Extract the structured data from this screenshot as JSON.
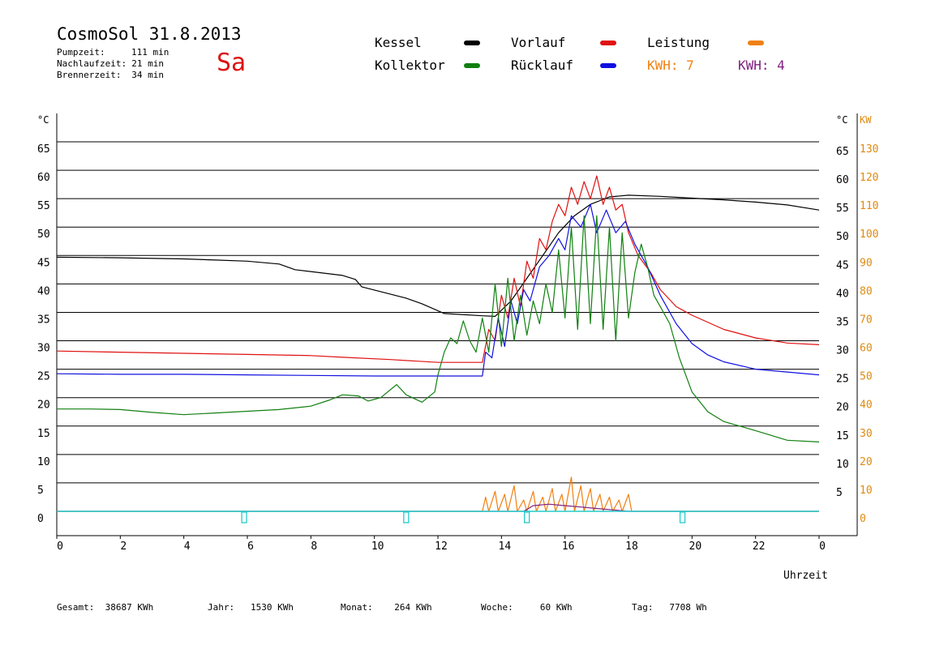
{
  "header": {
    "title": "CosmoSol 31.8.2013",
    "day": "Sa",
    "stats": [
      {
        "label": "Pumpzeit:",
        "value": "111 min"
      },
      {
        "label": "Nachlaufzeit:",
        "value": "21 min"
      },
      {
        "label": "Brennerzeit:",
        "value": "34 min"
      }
    ]
  },
  "legend": {
    "kessel": {
      "label": "Kessel",
      "color": "#000000"
    },
    "vorlauf": {
      "label": "Vorlauf",
      "color": "#e01010"
    },
    "leistung": {
      "label": "Leistung",
      "color": "#f08010"
    },
    "kollektor": {
      "label": "Kollektor",
      "color": "#108010"
    },
    "ruecklauf": {
      "label": "Rücklauf",
      "color": "#1010e0"
    },
    "kwh_orange": "KWH: 7",
    "kwh_purple": "KWH: 4"
  },
  "footer": [
    {
      "label": "Gesamt:",
      "value": "38687 KWh"
    },
    {
      "label": "Jahr:",
      "value": "1530 KWh"
    },
    {
      "label": "Monat:",
      "value": "264 KWh"
    },
    {
      "label": "Woche:",
      "value": "60 KWh"
    },
    {
      "label": "Tag:",
      "value": "7708 Wh"
    }
  ],
  "chart_data": {
    "type": "line",
    "xlabel": "Uhrzeit",
    "ylabel_left": "°C",
    "ylabel_right_temp": "°C",
    "ylabel_right_power": "KW",
    "xlim": [
      0,
      24
    ],
    "ylim": [
      0,
      65
    ],
    "x_ticks": [
      "0",
      "2",
      "4",
      "6",
      "8",
      "10",
      "12",
      "14",
      "16",
      "18",
      "20",
      "22",
      "0"
    ],
    "y_ticks_left": [
      "65",
      "60",
      "55",
      "50",
      "45",
      "40",
      "35",
      "30",
      "25",
      "20",
      "15",
      "10",
      "5",
      "0"
    ],
    "y_ticks_right_temp": [
      "65",
      "60",
      "55",
      "50",
      "45",
      "40",
      "35",
      "30",
      "25",
      "20",
      "15",
      "10",
      "5"
    ],
    "y_ticks_right_power": [
      "130",
      "120",
      "110",
      "100",
      "90",
      "80",
      "70",
      "60",
      "50",
      "40",
      "30",
      "20",
      "10",
      "0"
    ],
    "grid": "horizontal",
    "series": [
      {
        "name": "Kessel",
        "color": "#000000",
        "points": [
          [
            0,
            44.7
          ],
          [
            2,
            44.6
          ],
          [
            4,
            44.4
          ],
          [
            5,
            44.2
          ],
          [
            6,
            44.0
          ],
          [
            7,
            43.5
          ],
          [
            7.5,
            42.5
          ],
          [
            9,
            41.5
          ],
          [
            9.4,
            40.8
          ],
          [
            9.6,
            39.5
          ],
          [
            11,
            37.5
          ],
          [
            11.5,
            36.5
          ],
          [
            12.2,
            34.8
          ],
          [
            13.4,
            34.4
          ],
          [
            13.8,
            34.3
          ],
          [
            14.3,
            37
          ],
          [
            14.8,
            41
          ],
          [
            15.3,
            45
          ],
          [
            15.8,
            49
          ],
          [
            16.3,
            52
          ],
          [
            16.8,
            54
          ],
          [
            17.4,
            55.3
          ],
          [
            18,
            55.6
          ],
          [
            19,
            55.4
          ],
          [
            20,
            55.1
          ],
          [
            21,
            54.8
          ],
          [
            22,
            54.4
          ],
          [
            23,
            53.9
          ],
          [
            24,
            53.0
          ]
        ]
      },
      {
        "name": "Vorlauf",
        "color": "#e01010",
        "points": [
          [
            0,
            28.2
          ],
          [
            2,
            28.0
          ],
          [
            4,
            27.8
          ],
          [
            6,
            27.6
          ],
          [
            8,
            27.4
          ],
          [
            9,
            27.1
          ],
          [
            10.5,
            26.7
          ],
          [
            12,
            26.2
          ],
          [
            13.4,
            26.2
          ],
          [
            13.6,
            32
          ],
          [
            13.8,
            30
          ],
          [
            14.0,
            38
          ],
          [
            14.2,
            34
          ],
          [
            14.4,
            41
          ],
          [
            14.6,
            36
          ],
          [
            14.8,
            44
          ],
          [
            15.0,
            41
          ],
          [
            15.2,
            48
          ],
          [
            15.4,
            46
          ],
          [
            15.6,
            51
          ],
          [
            15.8,
            54
          ],
          [
            16.0,
            52
          ],
          [
            16.2,
            57
          ],
          [
            16.4,
            54
          ],
          [
            16.6,
            58
          ],
          [
            16.8,
            55
          ],
          [
            17.0,
            59
          ],
          [
            17.2,
            54
          ],
          [
            17.4,
            57
          ],
          [
            17.6,
            53
          ],
          [
            17.8,
            54
          ],
          [
            18.0,
            49
          ],
          [
            18.3,
            45
          ],
          [
            18.7,
            42
          ],
          [
            19.0,
            39
          ],
          [
            19.5,
            36
          ],
          [
            20,
            34.5
          ],
          [
            21,
            32
          ],
          [
            22,
            30.5
          ],
          [
            23,
            29.6
          ],
          [
            24,
            29.3
          ]
        ]
      },
      {
        "name": "Rücklauf",
        "color": "#1010e0",
        "points": [
          [
            0,
            24.2
          ],
          [
            2,
            24.1
          ],
          [
            4,
            24.1
          ],
          [
            6,
            24.0
          ],
          [
            8,
            23.9
          ],
          [
            10,
            23.8
          ],
          [
            12,
            23.8
          ],
          [
            13.4,
            23.8
          ],
          [
            13.5,
            28
          ],
          [
            13.7,
            27
          ],
          [
            13.9,
            34
          ],
          [
            14.1,
            29
          ],
          [
            14.3,
            37
          ],
          [
            14.5,
            33
          ],
          [
            14.7,
            39
          ],
          [
            14.9,
            37
          ],
          [
            15.2,
            43
          ],
          [
            15.5,
            45
          ],
          [
            15.8,
            48
          ],
          [
            16.0,
            46
          ],
          [
            16.2,
            52
          ],
          [
            16.5,
            50
          ],
          [
            16.8,
            54
          ],
          [
            17.0,
            49
          ],
          [
            17.3,
            53
          ],
          [
            17.6,
            49
          ],
          [
            17.9,
            51
          ],
          [
            18.2,
            47
          ],
          [
            18.6,
            43
          ],
          [
            19.0,
            38
          ],
          [
            19.5,
            33
          ],
          [
            20,
            29.5
          ],
          [
            20.5,
            27.5
          ],
          [
            21,
            26.3
          ],
          [
            22,
            25.0
          ],
          [
            23,
            24.5
          ],
          [
            24,
            24.0
          ]
        ]
      },
      {
        "name": "Kollektor",
        "color": "#108010",
        "points": [
          [
            0,
            18.0
          ],
          [
            1,
            18.0
          ],
          [
            2,
            17.9
          ],
          [
            3,
            17.4
          ],
          [
            4,
            17.0
          ],
          [
            5,
            17.3
          ],
          [
            6,
            17.6
          ],
          [
            7,
            17.9
          ],
          [
            8,
            18.5
          ],
          [
            8.6,
            19.6
          ],
          [
            9.0,
            20.5
          ],
          [
            9.5,
            20.3
          ],
          [
            9.8,
            19.4
          ],
          [
            10.2,
            20.0
          ],
          [
            10.7,
            22.3
          ],
          [
            11.0,
            20.5
          ],
          [
            11.5,
            19.2
          ],
          [
            11.9,
            21
          ],
          [
            12.0,
            24
          ],
          [
            12.2,
            28
          ],
          [
            12.4,
            30.5
          ],
          [
            12.6,
            29.5
          ],
          [
            12.8,
            33.5
          ],
          [
            13.0,
            30
          ],
          [
            13.2,
            28
          ],
          [
            13.4,
            34
          ],
          [
            13.6,
            28
          ],
          [
            13.8,
            40
          ],
          [
            14.0,
            29
          ],
          [
            14.2,
            41
          ],
          [
            14.4,
            30
          ],
          [
            14.6,
            38
          ],
          [
            14.8,
            31
          ],
          [
            15.0,
            37
          ],
          [
            15.2,
            33
          ],
          [
            15.4,
            40
          ],
          [
            15.6,
            35
          ],
          [
            15.8,
            46
          ],
          [
            16.0,
            34
          ],
          [
            16.2,
            50
          ],
          [
            16.4,
            32
          ],
          [
            16.6,
            52
          ],
          [
            16.8,
            33
          ],
          [
            17.0,
            52
          ],
          [
            17.2,
            32
          ],
          [
            17.4,
            50
          ],
          [
            17.6,
            30
          ],
          [
            17.8,
            49
          ],
          [
            18.0,
            34
          ],
          [
            18.2,
            42
          ],
          [
            18.4,
            47
          ],
          [
            18.6,
            43
          ],
          [
            18.8,
            38
          ],
          [
            19.0,
            36
          ],
          [
            19.3,
            33
          ],
          [
            19.6,
            27
          ],
          [
            20,
            21
          ],
          [
            20.5,
            17.5
          ],
          [
            21,
            15.8
          ],
          [
            22,
            14.2
          ],
          [
            23,
            12.5
          ],
          [
            24,
            12.2
          ]
        ]
      },
      {
        "name": "Leistung",
        "color": "#f08010",
        "axis": "power",
        "points": [
          [
            0,
            0
          ],
          [
            13.4,
            0
          ],
          [
            13.5,
            5
          ],
          [
            13.6,
            0
          ],
          [
            13.8,
            7
          ],
          [
            13.9,
            0
          ],
          [
            14.1,
            6
          ],
          [
            14.2,
            0
          ],
          [
            14.4,
            9
          ],
          [
            14.5,
            0
          ],
          [
            14.7,
            4
          ],
          [
            14.8,
            0
          ],
          [
            15.0,
            7
          ],
          [
            15.1,
            0
          ],
          [
            15.3,
            5
          ],
          [
            15.4,
            0
          ],
          [
            15.6,
            8
          ],
          [
            15.7,
            0
          ],
          [
            15.9,
            6
          ],
          [
            16.0,
            0
          ],
          [
            16.2,
            12
          ],
          [
            16.3,
            0
          ],
          [
            16.5,
            9
          ],
          [
            16.6,
            0
          ],
          [
            16.8,
            8
          ],
          [
            16.9,
            0
          ],
          [
            17.1,
            6
          ],
          [
            17.2,
            0
          ],
          [
            17.4,
            5
          ],
          [
            17.5,
            0
          ],
          [
            17.7,
            4
          ],
          [
            17.8,
            0
          ],
          [
            18.0,
            6
          ],
          [
            18.1,
            0
          ],
          [
            24,
            0
          ]
        ]
      },
      {
        "name": "Leistung-purple",
        "color": "#802080",
        "axis": "power",
        "points": [
          [
            0,
            0
          ],
          [
            14.7,
            0
          ],
          [
            15.0,
            2
          ],
          [
            15.5,
            2.5
          ],
          [
            16.0,
            2
          ],
          [
            16.5,
            1.5
          ],
          [
            17.0,
            1
          ],
          [
            17.5,
            0.5
          ],
          [
            18.0,
            0
          ],
          [
            24,
            0
          ]
        ]
      },
      {
        "name": "Pumpe",
        "color": "#22cccc",
        "points": [
          [
            0,
            0
          ],
          [
            24,
            0
          ]
        ]
      }
    ]
  }
}
